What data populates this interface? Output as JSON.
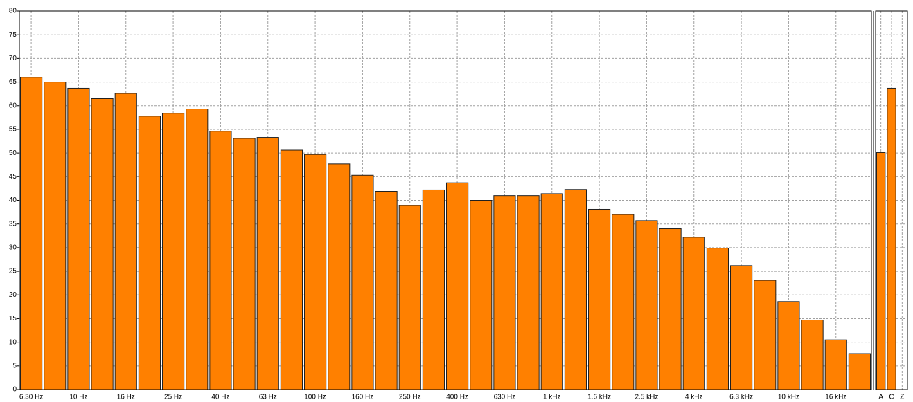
{
  "chart_data": [
    {
      "type": "bar",
      "categories": [
        "6.30 Hz",
        null,
        "10 Hz",
        null,
        "16 Hz",
        null,
        "25 Hz",
        null,
        "40 Hz",
        null,
        "63 Hz",
        null,
        "100 Hz",
        null,
        "160 Hz",
        null,
        "250 Hz",
        null,
        "400 Hz",
        null,
        "630 Hz",
        null,
        "1 kHz",
        null,
        "1.6 kHz",
        null,
        "2.5 kHz",
        null,
        "4 kHz",
        null,
        "6.3 kHz",
        null,
        "10 kHz",
        null,
        "16 kHz",
        null
      ],
      "values": [
        66,
        65,
        63.7,
        61.5,
        62.6,
        57.8,
        58.4,
        59.3,
        54.6,
        53.1,
        53.3,
        50.6,
        49.7,
        47.7,
        45.3,
        41.9,
        38.9,
        42.2,
        43.7,
        40.0,
        41.0,
        41.0,
        41.4,
        42.3,
        38.1,
        37.0,
        35.7,
        34.0,
        32.2,
        29.9,
        26.2,
        23.1,
        18.6,
        14.7,
        10.5,
        7.6
      ],
      "color": "#ff8000",
      "ylim": [
        0,
        80
      ],
      "yticks": [
        0,
        5,
        10,
        15,
        20,
        25,
        30,
        35,
        40,
        45,
        50,
        55,
        60,
        65,
        70,
        75,
        80
      ],
      "grid": true
    },
    {
      "type": "bar",
      "categories": [
        "A",
        "C",
        "Z"
      ],
      "values": [
        50.1,
        63.7,
        null
      ],
      "color": "#ff8000",
      "ylim": [
        0,
        80
      ],
      "grid": true
    }
  ]
}
